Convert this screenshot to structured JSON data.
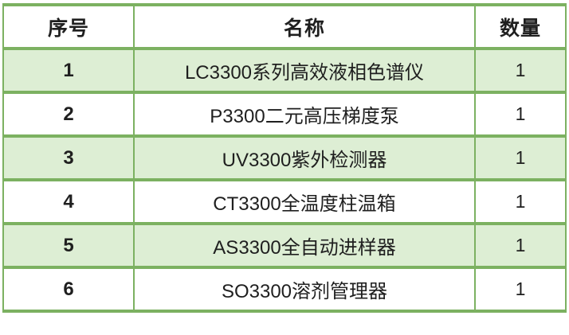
{
  "table": {
    "columns": [
      {
        "key": "index",
        "label": "序号"
      },
      {
        "key": "name",
        "label": "名称"
      },
      {
        "key": "qty",
        "label": "数量"
      }
    ],
    "rows": [
      {
        "index": "1",
        "name": "LC3300系列高效液相色谱仪",
        "qty": "1"
      },
      {
        "index": "2",
        "name": "P3300二元高压梯度泵",
        "qty": "1"
      },
      {
        "index": "3",
        "name": "UV3300紫外检测器",
        "qty": "1"
      },
      {
        "index": "4",
        "name": "CT3300全温度柱温箱",
        "qty": "1"
      },
      {
        "index": "5",
        "name": "AS3300全自动进样器",
        "qty": "1"
      },
      {
        "index": "6",
        "name": "SO3300溶剂管理器",
        "qty": "1"
      }
    ]
  },
  "colors": {
    "border": "#7cb161",
    "row_alt": "#ddeed4",
    "row_bg": "#ffffff",
    "text": "#1f1f1f"
  }
}
